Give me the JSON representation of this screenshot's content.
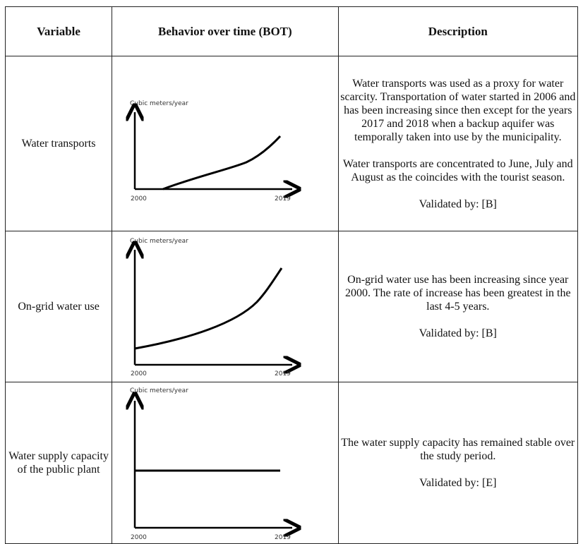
{
  "table": {
    "headers": [
      "Variable",
      "Behavior over time (BOT)",
      "Description"
    ],
    "rows": [
      {
        "variable": "Water transports",
        "graph": {
          "y_label": "Cubic meters/year",
          "x_start": "2000",
          "x_end": "2019",
          "shape": "starts-2006-increasing"
        },
        "description": [
          "Water transports was used as a proxy for water scarcity. Transportation of water started in 2006 and has been increasing since then except for the years 2017 and 2018 when a backup aquifer was temporally taken into use by the municipality.",
          "Water transports are concentrated to June, July and August as the coincides with the tourist season.",
          "Validated by: [B]"
        ]
      },
      {
        "variable": "On-grid water use",
        "graph": {
          "y_label": "Cubic meters/year",
          "x_start": "2000",
          "x_end": "2019",
          "shape": "exponential-increase"
        },
        "description": [
          "On-grid water use has been increasing since year 2000. The rate of increase has been greatest in the last 4-5 years.",
          "Validated by: [B]"
        ]
      },
      {
        "variable": "Water supply capacity of the public plant",
        "graph": {
          "y_label": "Cubic meters/year",
          "x_start": "2000",
          "x_end": "2019",
          "shape": "flat"
        },
        "description": [
          "The water supply capacity has remained stable over the study period.",
          "Validated by: [E]"
        ]
      }
    ]
  }
}
